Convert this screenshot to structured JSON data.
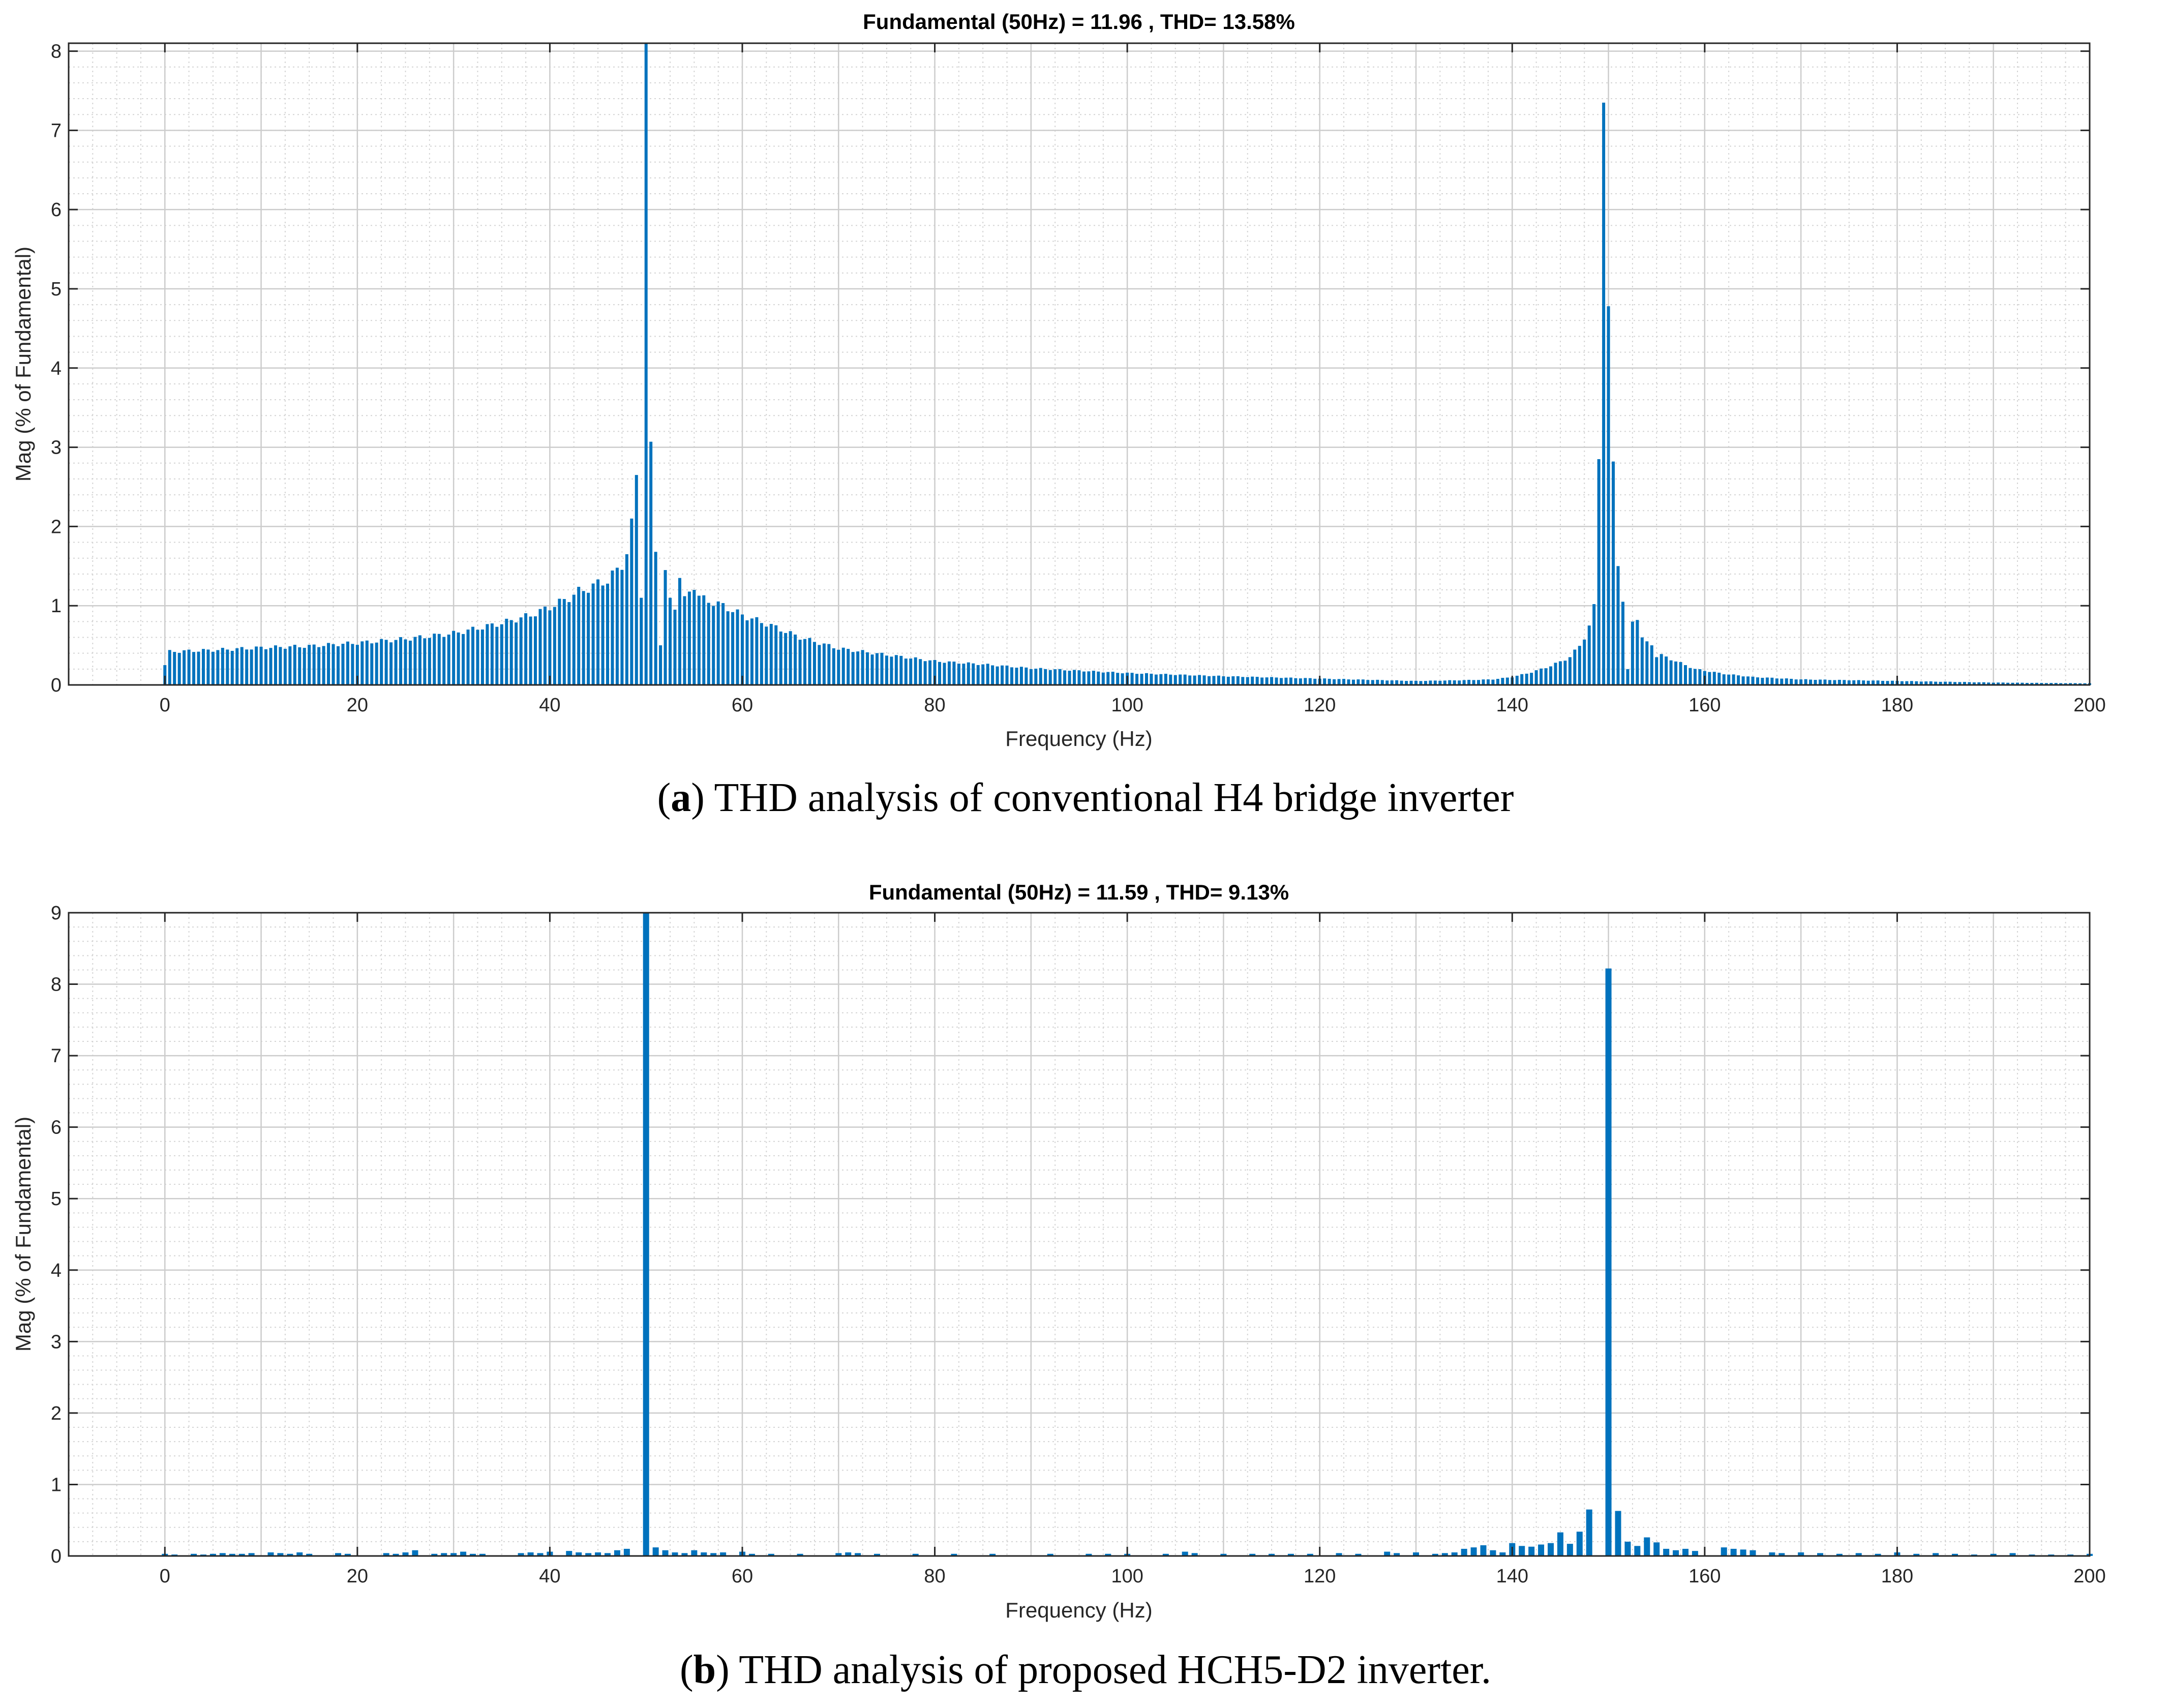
{
  "chart_data": [
    {
      "type": "bar",
      "title": "Fundamental (50Hz) = 11.96 , THD= 13.58%",
      "xlabel": "Frequency (Hz)",
      "ylabel": "Mag (% of Fundamental)",
      "xlim": [
        -10,
        200
      ],
      "ylim": [
        0,
        8.1
      ],
      "xticks": [
        0,
        20,
        40,
        60,
        80,
        100,
        120,
        140,
        160,
        180,
        200
      ],
      "yticks": [
        0,
        1,
        2,
        3,
        4,
        5,
        6,
        7,
        8
      ],
      "bar_spacing_hz": 0.5,
      "grid": "major and minor",
      "caption_letter": "a",
      "caption_text": ") THD analysis of conventional H4 bridge inverter",
      "color": "#0072BD",
      "envelope": [
        [
          0,
          0.25
        ],
        [
          0.5,
          0.42
        ],
        [
          5,
          0.44
        ],
        [
          10,
          0.47
        ],
        [
          15,
          0.49
        ],
        [
          20,
          0.53
        ],
        [
          25,
          0.58
        ],
        [
          30,
          0.65
        ],
        [
          35,
          0.78
        ],
        [
          38,
          0.88
        ],
        [
          40,
          0.98
        ],
        [
          42,
          1.1
        ],
        [
          43,
          1.18
        ],
        [
          44,
          1.22
        ],
        [
          45,
          1.28
        ],
        [
          46,
          1.32
        ],
        [
          47,
          1.45
        ],
        [
          48,
          1.6
        ],
        [
          49,
          1.8
        ],
        [
          50,
          1.9
        ],
        [
          51,
          1.65
        ],
        [
          52,
          1.3
        ],
        [
          53,
          1.25
        ],
        [
          54,
          1.2
        ],
        [
          55,
          1.15
        ],
        [
          56,
          1.08
        ],
        [
          58,
          1.0
        ],
        [
          60,
          0.88
        ],
        [
          63,
          0.75
        ],
        [
          66,
          0.6
        ],
        [
          70,
          0.46
        ],
        [
          75,
          0.38
        ],
        [
          80,
          0.3
        ],
        [
          85,
          0.26
        ],
        [
          90,
          0.21
        ],
        [
          95,
          0.18
        ],
        [
          100,
          0.15
        ],
        [
          110,
          0.11
        ],
        [
          120,
          0.08
        ],
        [
          130,
          0.05
        ],
        [
          135,
          0.06
        ],
        [
          138,
          0.07
        ],
        [
          140,
          0.1
        ],
        [
          142,
          0.16
        ],
        [
          144,
          0.24
        ],
        [
          146,
          0.35
        ],
        [
          147,
          0.5
        ],
        [
          148,
          0.7
        ],
        [
          149,
          1.0
        ],
        [
          150,
          1.1
        ],
        [
          151,
          1.0
        ],
        [
          152,
          0.75
        ],
        [
          153,
          0.65
        ],
        [
          154,
          0.5
        ],
        [
          155,
          0.4
        ],
        [
          157,
          0.3
        ],
        [
          159,
          0.2
        ],
        [
          162,
          0.14
        ],
        [
          165,
          0.1
        ],
        [
          170,
          0.07
        ],
        [
          180,
          0.05
        ],
        [
          190,
          0.03
        ],
        [
          200,
          0.02
        ]
      ],
      "overrides": [
        [
          48,
          1.65
        ],
        [
          48.5,
          2.1
        ],
        [
          49,
          2.65
        ],
        [
          49.5,
          1.1
        ],
        [
          50,
          8.1
        ],
        [
          50.5,
          3.07
        ],
        [
          51,
          1.68
        ],
        [
          51.5,
          0.5
        ],
        [
          52,
          1.45
        ],
        [
          52.5,
          1.1
        ],
        [
          53,
          0.95
        ],
        [
          53.5,
          1.35
        ],
        [
          54,
          1.12
        ],
        [
          55,
          1.2
        ],
        [
          148,
          0.75
        ],
        [
          148.5,
          1.02
        ],
        [
          149,
          2.85
        ],
        [
          149.5,
          7.35
        ],
        [
          150,
          4.78
        ],
        [
          150.5,
          2.82
        ],
        [
          151,
          1.5
        ],
        [
          151.5,
          1.05
        ],
        [
          152,
          0.2
        ],
        [
          152.5,
          0.8
        ],
        [
          153,
          0.82
        ],
        [
          153.5,
          0.6
        ],
        [
          154,
          0.55
        ],
        [
          154.5,
          0.5
        ],
        [
          155,
          0.35
        ]
      ]
    },
    {
      "type": "bar",
      "title": "Fundamental (50Hz) = 11.59 , THD= 9.13%",
      "xlabel": "Frequency (Hz)",
      "ylabel": "Mag (% of Fundamental)",
      "xlim": [
        -10,
        200
      ],
      "ylim": [
        0,
        9
      ],
      "xticks": [
        0,
        20,
        40,
        60,
        80,
        100,
        120,
        140,
        160,
        180,
        200
      ],
      "yticks": [
        0,
        1,
        2,
        3,
        4,
        5,
        6,
        7,
        8,
        9
      ],
      "grid": "major and minor",
      "caption_letter": "b",
      "caption_text": ") THD analysis of proposed HCH5-D2 inverter.",
      "color": "#0072BD",
      "bars": [
        [
          0,
          0.03
        ],
        [
          1,
          0.02
        ],
        [
          3,
          0.03
        ],
        [
          4,
          0.02
        ],
        [
          5,
          0.03
        ],
        [
          6,
          0.04
        ],
        [
          7,
          0.03
        ],
        [
          8,
          0.03
        ],
        [
          9,
          0.04
        ],
        [
          11,
          0.05
        ],
        [
          12,
          0.04
        ],
        [
          13,
          0.03
        ],
        [
          14,
          0.05
        ],
        [
          15,
          0.03
        ],
        [
          18,
          0.04
        ],
        [
          19,
          0.03
        ],
        [
          23,
          0.04
        ],
        [
          24,
          0.03
        ],
        [
          25,
          0.05
        ],
        [
          26,
          0.08
        ],
        [
          28,
          0.03
        ],
        [
          29,
          0.04
        ],
        [
          30,
          0.04
        ],
        [
          31,
          0.06
        ],
        [
          32,
          0.03
        ],
        [
          33,
          0.03
        ],
        [
          37,
          0.04
        ],
        [
          38,
          0.05
        ],
        [
          39,
          0.04
        ],
        [
          40,
          0.06
        ],
        [
          42,
          0.07
        ],
        [
          43,
          0.05
        ],
        [
          44,
          0.04
        ],
        [
          45,
          0.05
        ],
        [
          46,
          0.04
        ],
        [
          47,
          0.08
        ],
        [
          48,
          0.1
        ],
        [
          50,
          9.0
        ],
        [
          51,
          0.12
        ],
        [
          52,
          0.08
        ],
        [
          53,
          0.05
        ],
        [
          54,
          0.04
        ],
        [
          55,
          0.08
        ],
        [
          56,
          0.05
        ],
        [
          57,
          0.04
        ],
        [
          58,
          0.05
        ],
        [
          60,
          0.06
        ],
        [
          61,
          0.03
        ],
        [
          63,
          0.03
        ],
        [
          66,
          0.03
        ],
        [
          70,
          0.04
        ],
        [
          71,
          0.05
        ],
        [
          72,
          0.04
        ],
        [
          74,
          0.03
        ],
        [
          78,
          0.03
        ],
        [
          82,
          0.03
        ],
        [
          86,
          0.03
        ],
        [
          92,
          0.03
        ],
        [
          96,
          0.03
        ],
        [
          98,
          0.03
        ],
        [
          100,
          0.03
        ],
        [
          104,
          0.03
        ],
        [
          106,
          0.06
        ],
        [
          107,
          0.04
        ],
        [
          110,
          0.03
        ],
        [
          113,
          0.03
        ],
        [
          115,
          0.03
        ],
        [
          117,
          0.03
        ],
        [
          119,
          0.03
        ],
        [
          122,
          0.04
        ],
        [
          124,
          0.03
        ],
        [
          127,
          0.06
        ],
        [
          128,
          0.04
        ],
        [
          130,
          0.05
        ],
        [
          132,
          0.03
        ],
        [
          133,
          0.04
        ],
        [
          134,
          0.05
        ],
        [
          135,
          0.1
        ],
        [
          136,
          0.12
        ],
        [
          137,
          0.15
        ],
        [
          138,
          0.08
        ],
        [
          139,
          0.05
        ],
        [
          140,
          0.18
        ],
        [
          141,
          0.14
        ],
        [
          142,
          0.13
        ],
        [
          143,
          0.16
        ],
        [
          144,
          0.18
        ],
        [
          145,
          0.33
        ],
        [
          146,
          0.17
        ],
        [
          147,
          0.34
        ],
        [
          148,
          0.65
        ],
        [
          150,
          8.22
        ],
        [
          151,
          0.63
        ],
        [
          152,
          0.2
        ],
        [
          153,
          0.14
        ],
        [
          154,
          0.26
        ],
        [
          155,
          0.19
        ],
        [
          156,
          0.1
        ],
        [
          157,
          0.08
        ],
        [
          158,
          0.1
        ],
        [
          159,
          0.07
        ],
        [
          162,
          0.12
        ],
        [
          163,
          0.1
        ],
        [
          164,
          0.09
        ],
        [
          165,
          0.08
        ],
        [
          167,
          0.05
        ],
        [
          168,
          0.04
        ],
        [
          170,
          0.05
        ],
        [
          172,
          0.04
        ],
        [
          174,
          0.03
        ],
        [
          176,
          0.04
        ],
        [
          178,
          0.03
        ],
        [
          180,
          0.05
        ],
        [
          182,
          0.03
        ],
        [
          184,
          0.04
        ],
        [
          186,
          0.03
        ],
        [
          188,
          0.02
        ],
        [
          190,
          0.03
        ],
        [
          192,
          0.04
        ],
        [
          194,
          0.02
        ],
        [
          196,
          0.02
        ],
        [
          198,
          0.02
        ],
        [
          200,
          0.03
        ]
      ]
    }
  ]
}
